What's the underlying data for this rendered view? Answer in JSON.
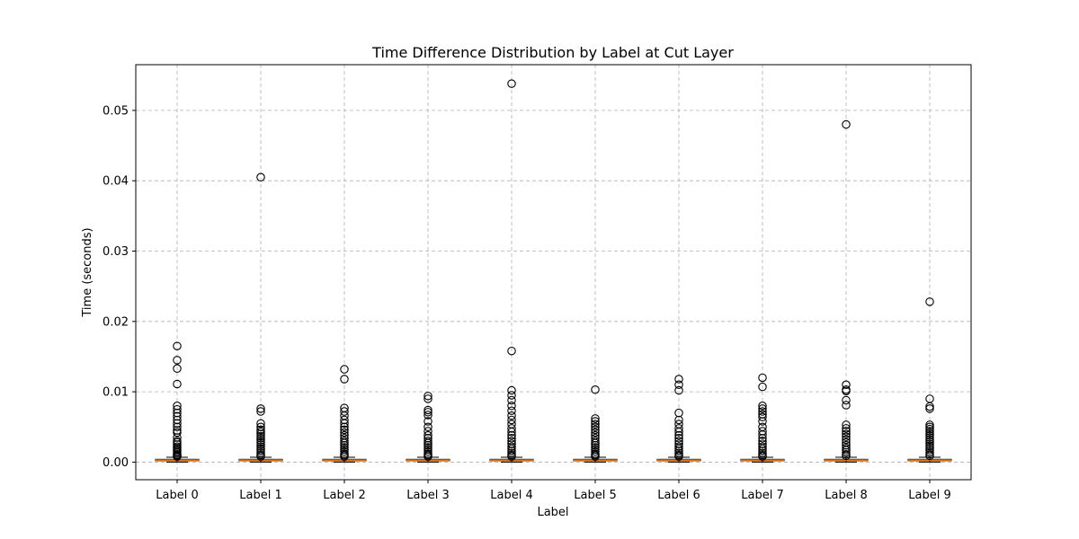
{
  "chart_data": {
    "type": "boxplot",
    "title": "Time Difference Distribution by Label at Cut Layer",
    "xlabel": "Label",
    "ylabel": "Time (seconds)",
    "ylim": [
      -0.0025,
      0.0565
    ],
    "yticks": [
      0.0,
      0.01,
      0.02,
      0.03,
      0.04,
      0.05
    ],
    "ytick_labels": [
      "0.00",
      "0.01",
      "0.02",
      "0.03",
      "0.04",
      "0.05"
    ],
    "grid": true,
    "categories": [
      "Label 0",
      "Label 1",
      "Label 2",
      "Label 3",
      "Label 4",
      "Label 5",
      "Label 6",
      "Label 7",
      "Label 8",
      "Label 9"
    ],
    "boxes": [
      {
        "whislo": 0.0,
        "q1": 0.0002,
        "median": 0.0003,
        "q3": 0.0004,
        "whishi": 0.0007,
        "fliers": [
          0.0165,
          0.0145,
          0.0133,
          0.0111,
          0.008,
          0.0075,
          0.007,
          0.0065,
          0.006,
          0.0055,
          0.005,
          0.0045,
          0.0042,
          0.0035,
          0.003,
          0.0028,
          0.0025,
          0.0022,
          0.002,
          0.0018,
          0.0016,
          0.0014,
          0.0012,
          0.001,
          0.0009,
          0.0008
        ]
      },
      {
        "whislo": 0.0,
        "q1": 0.0002,
        "median": 0.0003,
        "q3": 0.0004,
        "whishi": 0.0007,
        "fliers": [
          0.0405,
          0.0076,
          0.0072,
          0.0055,
          0.005,
          0.0046,
          0.0043,
          0.004,
          0.0037,
          0.0034,
          0.0031,
          0.0028,
          0.0025,
          0.0022,
          0.0019,
          0.0016,
          0.0013,
          0.001,
          0.0008
        ]
      },
      {
        "whislo": 0.0,
        "q1": 0.0002,
        "median": 0.0003,
        "q3": 0.0004,
        "whishi": 0.0007,
        "fliers": [
          0.0132,
          0.0118,
          0.0077,
          0.0072,
          0.0066,
          0.006,
          0.0055,
          0.005,
          0.0046,
          0.0042,
          0.0038,
          0.0034,
          0.003,
          0.0027,
          0.0024,
          0.0021,
          0.0018,
          0.0015,
          0.0012,
          0.001,
          0.0008
        ]
      },
      {
        "whislo": 0.0,
        "q1": 0.0002,
        "median": 0.0003,
        "q3": 0.0004,
        "whishi": 0.0007,
        "fliers": [
          0.0094,
          0.009,
          0.0074,
          0.0071,
          0.0067,
          0.0058,
          0.005,
          0.0044,
          0.0038,
          0.0034,
          0.003,
          0.0027,
          0.0024,
          0.0021,
          0.0018,
          0.0015,
          0.0012,
          0.001,
          0.0008
        ]
      },
      {
        "whislo": 0.0,
        "q1": 0.0002,
        "median": 0.0003,
        "q3": 0.0004,
        "whishi": 0.0007,
        "fliers": [
          0.0538,
          0.0158,
          0.0102,
          0.0095,
          0.0088,
          0.008,
          0.0073,
          0.0066,
          0.006,
          0.0054,
          0.0048,
          0.0043,
          0.0038,
          0.0034,
          0.003,
          0.0026,
          0.0022,
          0.0019,
          0.0016,
          0.0013,
          0.001,
          0.0008
        ]
      },
      {
        "whislo": 0.0,
        "q1": 0.0002,
        "median": 0.0003,
        "q3": 0.0004,
        "whishi": 0.0007,
        "fliers": [
          0.0103,
          0.0062,
          0.0058,
          0.0054,
          0.005,
          0.0046,
          0.0042,
          0.0038,
          0.0034,
          0.003,
          0.0027,
          0.0024,
          0.0021,
          0.0018,
          0.0015,
          0.0012,
          0.001,
          0.0008
        ]
      },
      {
        "whislo": 0.0,
        "q1": 0.0002,
        "median": 0.0003,
        "q3": 0.0004,
        "whishi": 0.0007,
        "fliers": [
          0.0118,
          0.011,
          0.0102,
          0.007,
          0.006,
          0.0054,
          0.0048,
          0.0043,
          0.0038,
          0.0034,
          0.003,
          0.0026,
          0.0022,
          0.0019,
          0.0016,
          0.0013,
          0.001,
          0.0008
        ]
      },
      {
        "whislo": 0.0,
        "q1": 0.0002,
        "median": 0.0003,
        "q3": 0.0004,
        "whishi": 0.0007,
        "fliers": [
          0.012,
          0.0107,
          0.008,
          0.0076,
          0.0072,
          0.0068,
          0.0064,
          0.0058,
          0.005,
          0.0044,
          0.0039,
          0.0034,
          0.003,
          0.0026,
          0.0022,
          0.0019,
          0.0016,
          0.0013,
          0.001,
          0.0008
        ]
      },
      {
        "whislo": 0.0,
        "q1": 0.0002,
        "median": 0.0003,
        "q3": 0.0004,
        "whishi": 0.0007,
        "fliers": [
          0.048,
          0.011,
          0.0103,
          0.0101,
          0.0088,
          0.0081,
          0.0053,
          0.0048,
          0.0044,
          0.004,
          0.0036,
          0.0032,
          0.0028,
          0.0024,
          0.002,
          0.0017,
          0.0014,
          0.0011,
          0.0009
        ]
      },
      {
        "whislo": 0.0,
        "q1": 0.0002,
        "median": 0.0003,
        "q3": 0.0004,
        "whishi": 0.0007,
        "fliers": [
          0.0228,
          0.009,
          0.0079,
          0.0076,
          0.0053,
          0.005,
          0.0047,
          0.0044,
          0.0041,
          0.0038,
          0.0035,
          0.0032,
          0.0029,
          0.0026,
          0.0023,
          0.002,
          0.0017,
          0.0014,
          0.0011,
          0.0009
        ]
      }
    ],
    "colors": {
      "box": "#000000",
      "median": "#ff7f0e",
      "grid": "#b0b0b0",
      "flier_edge": "#000000"
    }
  }
}
